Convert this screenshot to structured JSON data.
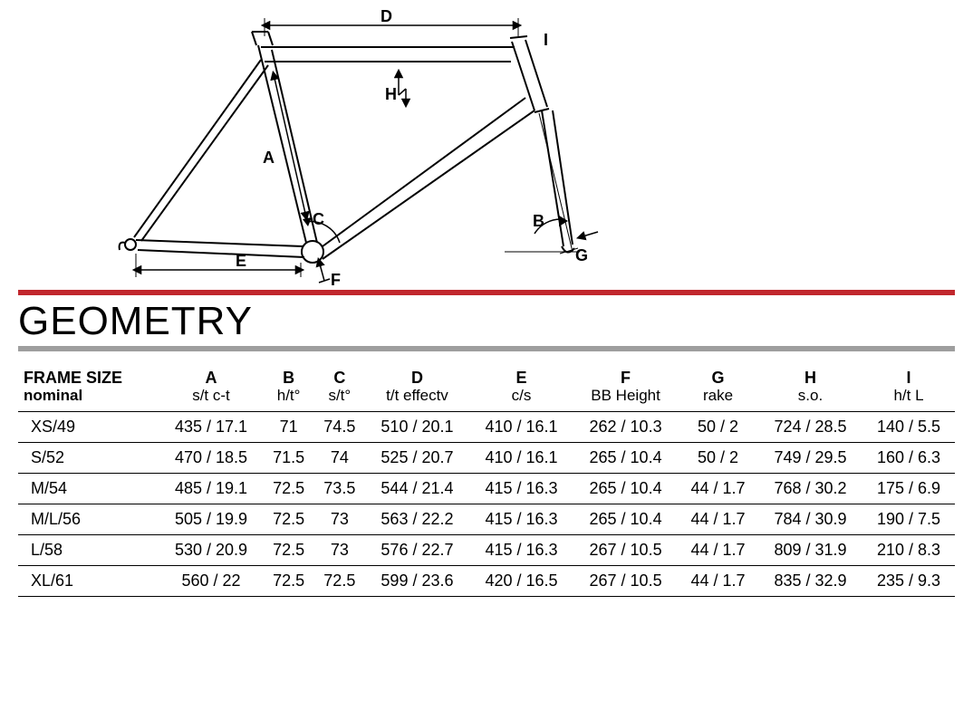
{
  "title": "GEOMETRY",
  "colors": {
    "red_bar": "#c1272d",
    "gray_bar": "#9e9e9e",
    "line": "#000000",
    "bg": "#ffffff"
  },
  "diagram": {
    "labels": {
      "A": "A",
      "B": "B",
      "C": "C",
      "D": "D",
      "E": "E",
      "F": "F",
      "G": "G",
      "H": "H",
      "I": "I"
    }
  },
  "table": {
    "columns": [
      {
        "top": "FRAME SIZE",
        "sub": "nominal"
      },
      {
        "top": "A",
        "sub": "s/t c-t"
      },
      {
        "top": "B",
        "sub": "h/t°"
      },
      {
        "top": "C",
        "sub": "s/t°"
      },
      {
        "top": "D",
        "sub": "t/t effectv"
      },
      {
        "top": "E",
        "sub": "c/s"
      },
      {
        "top": "F",
        "sub": "BB Height"
      },
      {
        "top": "G",
        "sub": "rake"
      },
      {
        "top": "H",
        "sub": "s.o."
      },
      {
        "top": "I",
        "sub": "h/t L"
      }
    ],
    "rows": [
      [
        "XS/49",
        "435 / 17.1",
        "71",
        "74.5",
        "510 / 20.1",
        "410 / 16.1",
        "262 / 10.3",
        "50 / 2",
        "724 / 28.5",
        "140 / 5.5"
      ],
      [
        "S/52",
        "470 / 18.5",
        "71.5",
        "74",
        "525 / 20.7",
        "410 / 16.1",
        "265 / 10.4",
        "50 / 2",
        "749 / 29.5",
        "160 / 6.3"
      ],
      [
        "M/54",
        "485 / 19.1",
        "72.5",
        "73.5",
        "544 / 21.4",
        "415 / 16.3",
        "265 / 10.4",
        "44 / 1.7",
        "768 / 30.2",
        "175 / 6.9"
      ],
      [
        "M/L/56",
        "505 / 19.9",
        "72.5",
        "73",
        "563 / 22.2",
        "415 / 16.3",
        "265 / 10.4",
        "44 / 1.7",
        "784 / 30.9",
        "190 / 7.5"
      ],
      [
        "L/58",
        "530 / 20.9",
        "72.5",
        "73",
        "576 / 22.7",
        "415 / 16.3",
        "267 / 10.5",
        "44 / 1.7",
        "809 / 31.9",
        "210 / 8.3"
      ],
      [
        "XL/61",
        "560 / 22",
        "72.5",
        "72.5",
        "599 / 23.6",
        "420 / 16.5",
        "267 / 10.5",
        "44 / 1.7",
        "835 / 32.9",
        "235 / 9.3"
      ]
    ]
  }
}
